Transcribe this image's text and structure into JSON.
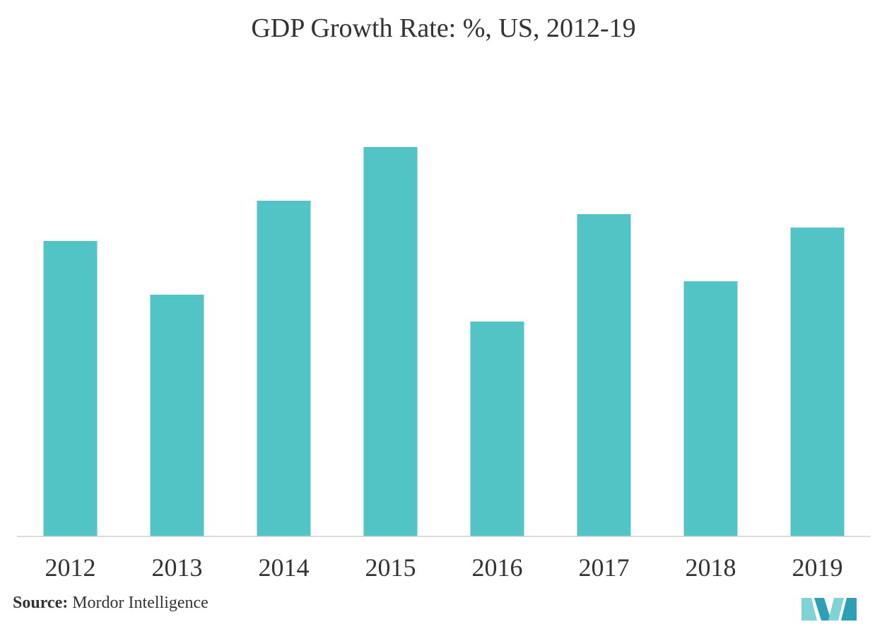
{
  "chart_data": {
    "type": "bar",
    "title": "GDP Growth Rate: %, US, 2012-19",
    "categories": [
      "2012",
      "2013",
      "2014",
      "2015",
      "2016",
      "2017",
      "2018",
      "2019"
    ],
    "values": [
      2.2,
      1.8,
      2.5,
      2.9,
      1.6,
      2.4,
      1.9,
      2.3
    ],
    "xlabel": "",
    "ylabel": "",
    "ylim": [
      0,
      3.1
    ],
    "grid": false,
    "legend": "none",
    "bar_color": "#52C4C6"
  },
  "source": {
    "label": "Source:",
    "text": "Mordor Intelligence"
  },
  "logo": {
    "icon": "mordor-intelligence-logo-icon",
    "color_light": "#7FD3D5",
    "color_dark": "#2E9FB4"
  }
}
